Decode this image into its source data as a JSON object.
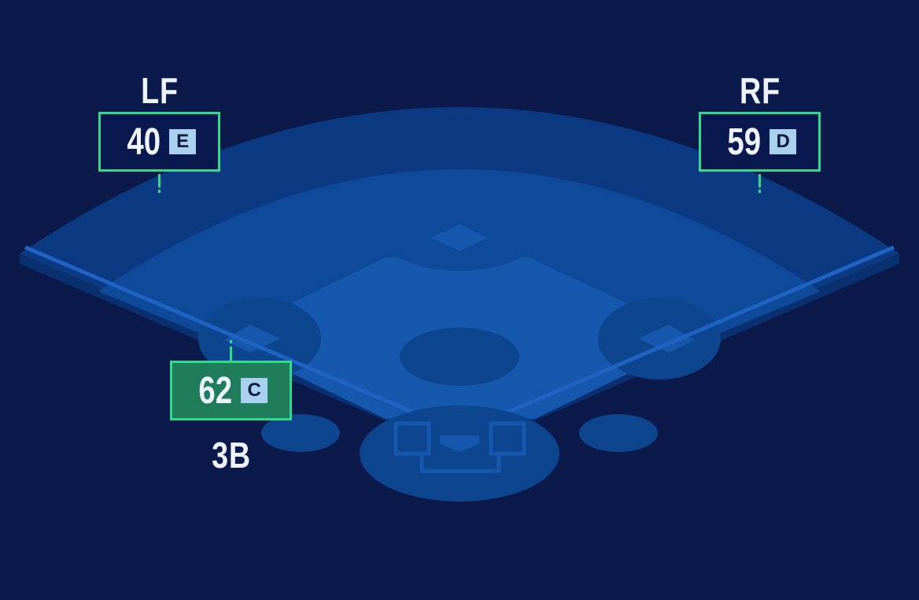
{
  "colors": {
    "background": "#0b1a4b",
    "outfield": "#0c3a82",
    "grass": "#0e4a99",
    "infield": "#1658ad",
    "dirt": "#0d468f",
    "foul_line": "#1f63c4",
    "highlight_border": "#33d98a",
    "active_card": "#1f7d5c",
    "grade_badge": "#a9d0ee"
  },
  "positions": [
    {
      "label": "LF",
      "score": "40",
      "grade": "E",
      "active": false
    },
    {
      "label": "RF",
      "score": "59",
      "grade": "D",
      "active": false
    },
    {
      "label": "3B",
      "score": "62",
      "grade": "C",
      "active": true
    }
  ]
}
